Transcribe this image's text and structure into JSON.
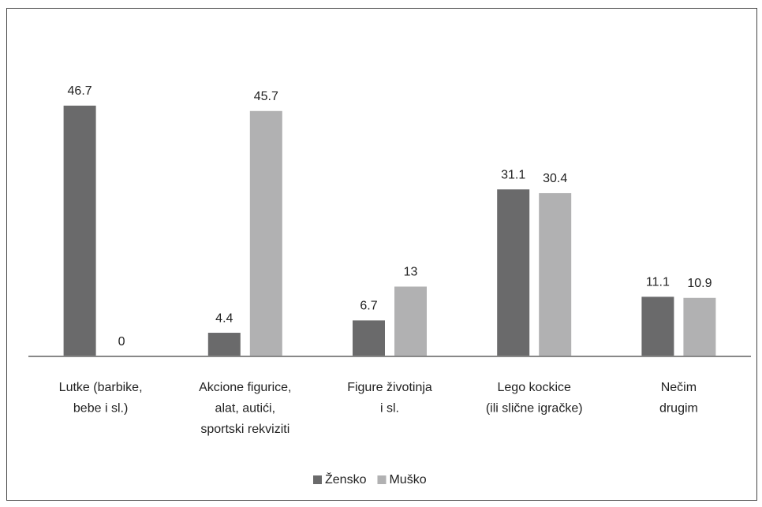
{
  "chart_data": {
    "type": "bar",
    "categories": [
      "Lutke (barbike,\nbebe i sl.)",
      "Akcione figurice,\nalat, autići,\nsportski rekviziti",
      "Figure životinja\ni sl.",
      "Lego kockice\n(ili slične igračke)",
      "Nečim\ndrugim"
    ],
    "series": [
      {
        "name": "Žensko",
        "color": "#6a6a6b",
        "values": [
          46.7,
          4.4,
          6.7,
          31.1,
          11.1
        ]
      },
      {
        "name": "Muško",
        "color": "#b1b1b2",
        "values": [
          0,
          45.7,
          13,
          30.4,
          10.9
        ]
      }
    ],
    "ylim": [
      0,
      50
    ],
    "legend": "bottom"
  }
}
